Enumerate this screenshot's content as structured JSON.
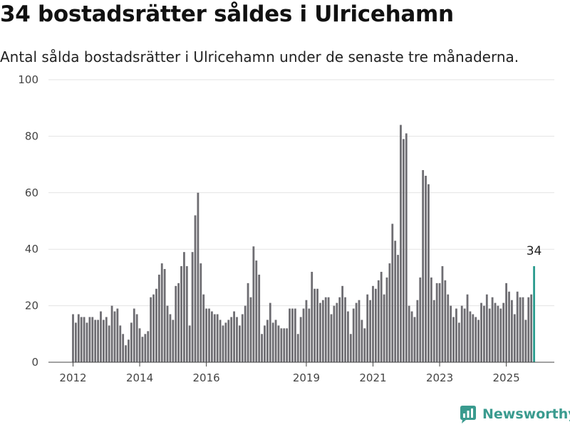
{
  "title": "34 bostadsrätter såldes i Ulricehamn",
  "subtitle": "Antal sålda bostadsrätter i Ulricehamn under de senaste tre månaderna.",
  "brand": {
    "name": "Newsworthy",
    "color": "#3a9b8f"
  },
  "colors": {
    "bars": "#6e6d72",
    "highlight": "#2a9c8e",
    "grid": "#e3e3e3",
    "axis": "#444444"
  },
  "chart_data": {
    "type": "bar",
    "start": "2012-01",
    "ylim": [
      0,
      100
    ],
    "yticks": [
      0,
      20,
      40,
      60,
      80,
      100
    ],
    "xticks": [
      {
        "label": "2012",
        "date": "2012-01"
      },
      {
        "label": "2014",
        "date": "2014-01"
      },
      {
        "label": "2016",
        "date": "2016-01"
      },
      {
        "label": "2019",
        "date": "2019-01"
      },
      {
        "label": "2021",
        "date": "2021-01"
      },
      {
        "label": "2023",
        "date": "2023-01"
      },
      {
        "label": "2025",
        "date": "2025-01"
      }
    ],
    "values": [
      17,
      14,
      17,
      16,
      16,
      14,
      16,
      16,
      15,
      15,
      18,
      15,
      16,
      13,
      20,
      18,
      19,
      13,
      10,
      6,
      8,
      14,
      19,
      17,
      12,
      9,
      10,
      11,
      23,
      24,
      26,
      31,
      35,
      33,
      20,
      17,
      15,
      27,
      28,
      34,
      39,
      34,
      13,
      39,
      52,
      60,
      35,
      24,
      19,
      19,
      18,
      17,
      17,
      15,
      13,
      14,
      15,
      16,
      18,
      16,
      13,
      17,
      20,
      28,
      23,
      41,
      36,
      31,
      10,
      13,
      15,
      21,
      14,
      15,
      13,
      12,
      12,
      12,
      19,
      19,
      19,
      10,
      16,
      19,
      22,
      19,
      32,
      26,
      26,
      21,
      22,
      23,
      23,
      17,
      20,
      21,
      23,
      27,
      23,
      18,
      10,
      19,
      21,
      22,
      15,
      12,
      24,
      22,
      27,
      26,
      29,
      32,
      24,
      30,
      35,
      49,
      43,
      38,
      84,
      79,
      81,
      20,
      18,
      16,
      22,
      30,
      68,
      66,
      63,
      30,
      22,
      28,
      28,
      34,
      29,
      24,
      20,
      16,
      19,
      14,
      20,
      19,
      24,
      18,
      17,
      16,
      15,
      21,
      20,
      24,
      19,
      23,
      21,
      20,
      19,
      21,
      28,
      25,
      22,
      17,
      25,
      23,
      23,
      15,
      23,
      24,
      34
    ],
    "highlight_last": true,
    "highlight_label": "34"
  }
}
